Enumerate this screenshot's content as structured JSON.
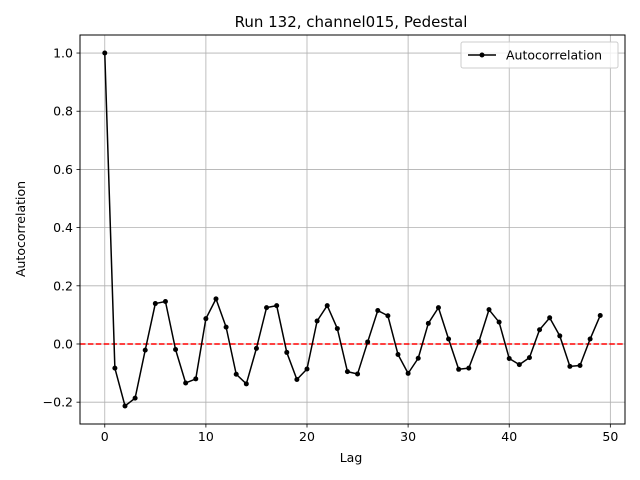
{
  "chart_data": {
    "type": "line",
    "title": "Run 132, channel015, Pedestal",
    "xlabel": "Lag",
    "ylabel": "Autocorrelation",
    "xlim": [
      -2.45,
      51.45
    ],
    "ylim": [
      -0.275,
      1.062
    ],
    "xticks": [
      0,
      10,
      20,
      30,
      40,
      50
    ],
    "xtick_labels": [
      "0",
      "10",
      "20",
      "30",
      "40",
      "50"
    ],
    "yticks": [
      -0.2,
      0.0,
      0.2,
      0.4,
      0.6,
      0.8,
      1.0
    ],
    "ytick_labels": [
      "−0.2",
      "0.0",
      "0.2",
      "0.4",
      "0.6",
      "0.8",
      "1.0"
    ],
    "grid": true,
    "legend_position": "top-right",
    "reference_line": {
      "y": 0.0,
      "color": "#ff0000",
      "style": "dashed"
    },
    "series": [
      {
        "name": "Autocorrelation",
        "color": "#000000",
        "marker": "dot",
        "x": [
          0,
          1,
          2,
          3,
          4,
          5,
          6,
          7,
          8,
          9,
          10,
          11,
          12,
          13,
          14,
          15,
          16,
          17,
          18,
          19,
          20,
          21,
          22,
          23,
          24,
          25,
          26,
          27,
          28,
          29,
          30,
          31,
          32,
          33,
          34,
          35,
          36,
          37,
          38,
          39,
          40,
          41,
          42,
          43,
          44,
          45,
          46,
          47,
          48,
          49
        ],
        "y": [
          1.0,
          -0.083,
          -0.213,
          -0.186,
          -0.021,
          0.139,
          0.146,
          -0.019,
          -0.134,
          -0.12,
          0.087,
          0.155,
          0.058,
          -0.104,
          -0.137,
          -0.015,
          0.125,
          0.132,
          -0.029,
          -0.122,
          -0.086,
          0.079,
          0.132,
          0.053,
          -0.095,
          -0.103,
          0.007,
          0.115,
          0.097,
          -0.036,
          -0.101,
          -0.049,
          0.071,
          0.125,
          0.017,
          -0.087,
          -0.083,
          0.008,
          0.118,
          0.075,
          -0.05,
          -0.071,
          -0.047,
          0.049,
          0.09,
          0.028,
          -0.077,
          -0.074,
          0.017,
          0.098
        ]
      }
    ]
  }
}
